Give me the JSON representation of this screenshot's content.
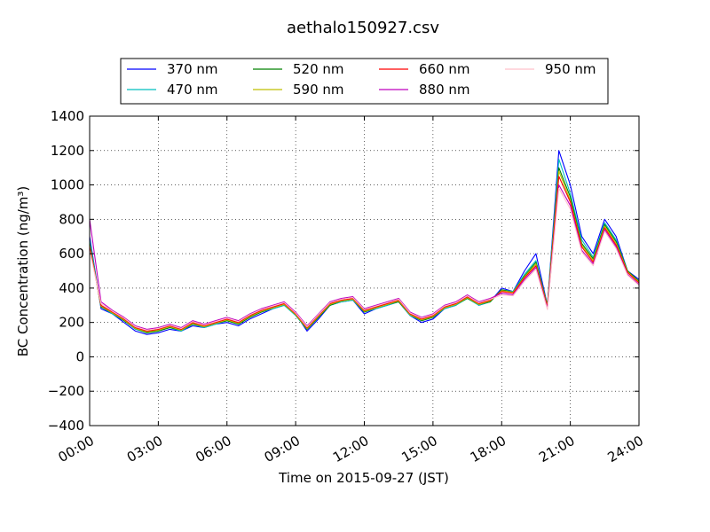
{
  "chart_data": {
    "type": "line",
    "title": "aethalo150927.csv",
    "xlabel": "Time on 2015-09-27 (JST)",
    "ylabel": "BC Concentration (ng/m³)",
    "ylim": [
      -400,
      1400
    ],
    "xlim": [
      "00:00",
      "24:00"
    ],
    "grid": true,
    "legend_position": "top",
    "x_ticks": [
      "00:00",
      "03:00",
      "06:00",
      "09:00",
      "12:00",
      "15:00",
      "18:00",
      "21:00",
      "24:00"
    ],
    "y_ticks": [
      "−400",
      "−200",
      "0",
      "200",
      "400",
      "600",
      "800",
      "1000",
      "1200",
      "1400"
    ],
    "x": [
      "00:00",
      "00:30",
      "01:00",
      "01:30",
      "02:00",
      "02:30",
      "03:00",
      "03:30",
      "04:00",
      "04:30",
      "05:00",
      "05:30",
      "06:00",
      "06:30",
      "07:00",
      "07:30",
      "08:00",
      "08:30",
      "09:00",
      "09:30",
      "10:00",
      "10:30",
      "11:00",
      "11:30",
      "12:00",
      "12:30",
      "13:00",
      "13:30",
      "14:00",
      "14:30",
      "15:00",
      "15:30",
      "16:00",
      "16:30",
      "17:00",
      "17:30",
      "18:00",
      "18:30",
      "19:00",
      "19:30",
      "20:00",
      "20:30",
      "21:00",
      "21:30",
      "22:00",
      "22:30",
      "23:00",
      "23:30",
      "24:00"
    ],
    "series": [
      {
        "name": "370 nm",
        "color": "#0000ff",
        "values": [
          700,
          280,
          250,
          200,
          150,
          130,
          140,
          160,
          150,
          180,
          170,
          190,
          200,
          180,
          220,
          250,
          280,
          300,
          250,
          150,
          220,
          300,
          320,
          330,
          250,
          280,
          300,
          320,
          240,
          200,
          220,
          280,
          300,
          350,
          300,
          320,
          400,
          380,
          500,
          600,
          300,
          1200,
          1000,
          700,
          600,
          800,
          700,
          500,
          450
        ]
      },
      {
        "name": "470 nm",
        "color": "#00bfbf",
        "values": [
          680,
          290,
          250,
          210,
          160,
          140,
          150,
          170,
          150,
          190,
          170,
          190,
          210,
          190,
          230,
          260,
          280,
          300,
          240,
          160,
          230,
          300,
          320,
          330,
          260,
          280,
          300,
          320,
          240,
          210,
          230,
          280,
          300,
          340,
          300,
          320,
          390,
          380,
          480,
          560,
          300,
          1150,
          950,
          680,
          580,
          780,
          680,
          500,
          440
        ]
      },
      {
        "name": "520 nm",
        "color": "#008000",
        "values": [
          660,
          290,
          255,
          210,
          165,
          140,
          150,
          170,
          155,
          190,
          175,
          195,
          210,
          190,
          230,
          260,
          285,
          305,
          245,
          160,
          230,
          300,
          325,
          335,
          260,
          285,
          305,
          320,
          245,
          210,
          230,
          285,
          305,
          340,
          305,
          320,
          390,
          375,
          470,
          550,
          300,
          1100,
          930,
          660,
          570,
          770,
          670,
          500,
          440
        ]
      },
      {
        "name": "590 nm",
        "color": "#bfbf00",
        "values": [
          650,
          295,
          255,
          215,
          165,
          145,
          155,
          175,
          155,
          195,
          175,
          195,
          215,
          195,
          235,
          265,
          285,
          305,
          245,
          165,
          235,
          305,
          325,
          335,
          265,
          285,
          305,
          325,
          245,
          215,
          235,
          285,
          305,
          345,
          305,
          325,
          385,
          375,
          465,
          540,
          295,
          1080,
          910,
          650,
          560,
          760,
          660,
          495,
          435
        ]
      },
      {
        "name": "660 nm",
        "color": "#ff0000",
        "values": [
          640,
          300,
          260,
          220,
          170,
          150,
          160,
          180,
          160,
          200,
          180,
          200,
          220,
          200,
          240,
          270,
          290,
          310,
          250,
          170,
          240,
          310,
          330,
          340,
          270,
          290,
          310,
          330,
          250,
          220,
          240,
          290,
          310,
          350,
          310,
          330,
          380,
          370,
          460,
          530,
          290,
          1050,
          900,
          640,
          550,
          750,
          650,
          490,
          430
        ]
      },
      {
        "name": "880 nm",
        "color": "#bf00bf",
        "values": [
          800,
          320,
          270,
          230,
          180,
          160,
          170,
          190,
          170,
          210,
          190,
          210,
          230,
          210,
          250,
          280,
          300,
          320,
          260,
          180,
          250,
          320,
          340,
          350,
          280,
          300,
          320,
          340,
          260,
          230,
          250,
          300,
          320,
          360,
          320,
          340,
          370,
          360,
          450,
          520,
          280,
          1000,
          880,
          620,
          540,
          740,
          640,
          480,
          420
        ]
      },
      {
        "name": "950 nm",
        "color": "#ffc0cb",
        "values": [
          620,
          310,
          265,
          225,
          175,
          155,
          165,
          185,
          165,
          205,
          185,
          205,
          225,
          205,
          245,
          275,
          295,
          315,
          255,
          175,
          245,
          315,
          335,
          345,
          275,
          295,
          315,
          335,
          255,
          225,
          245,
          295,
          315,
          355,
          315,
          335,
          360,
          355,
          440,
          510,
          275,
          980,
          860,
          610,
          530,
          730,
          630,
          475,
          415
        ]
      }
    ]
  }
}
